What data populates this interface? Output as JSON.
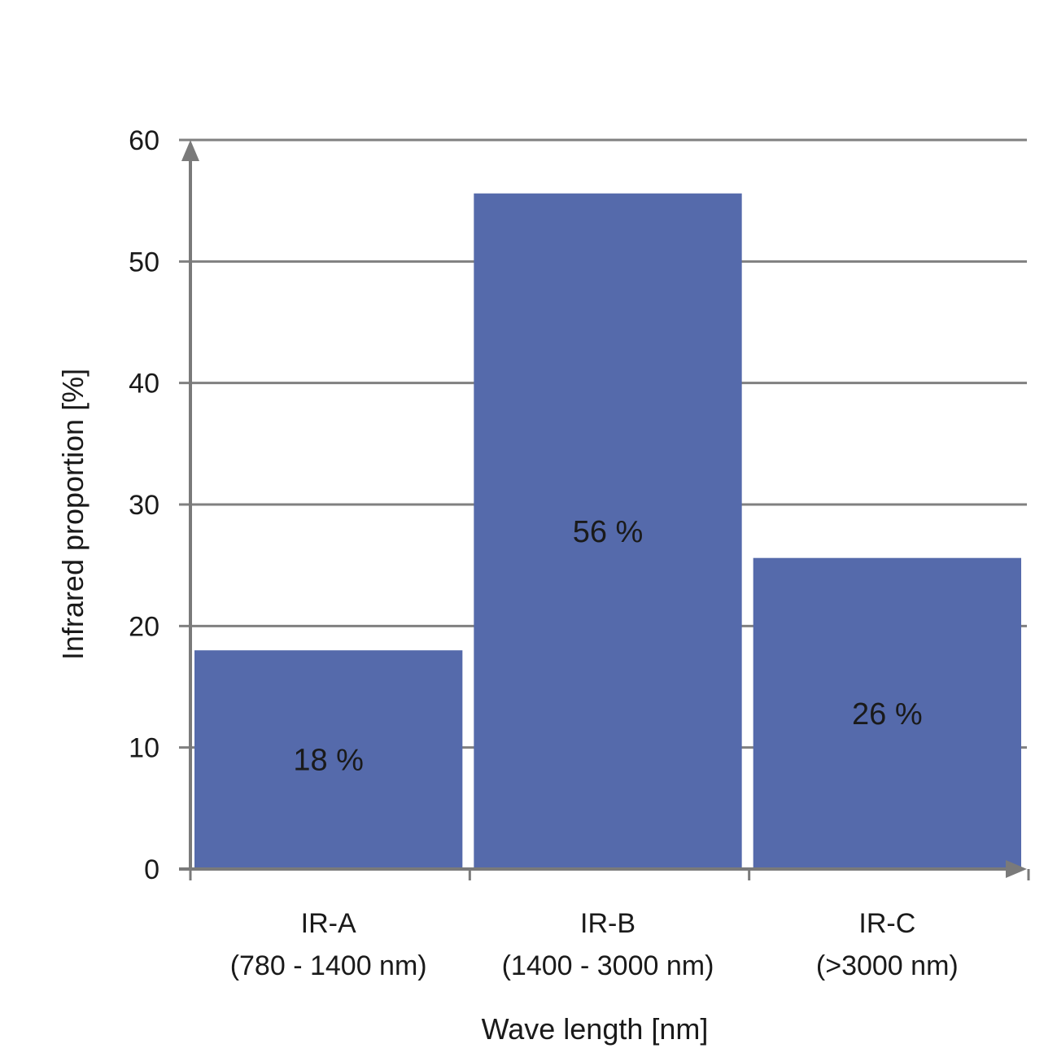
{
  "colors": {
    "bar": "#556AAB",
    "grid": "#808080",
    "axis": "#7a7a7a",
    "text": "#1a1a1a"
  },
  "chart_data": {
    "type": "bar",
    "categories": [
      [
        "IR-A",
        "(780 - 1400 nm)"
      ],
      [
        "IR-B",
        "(1400 - 3000 nm)"
      ],
      [
        "IR-C",
        "(>3000 nm)"
      ]
    ],
    "values": [
      18,
      55.6,
      25.6
    ],
    "data_labels": [
      "18 %",
      "56 %",
      "26 %"
    ],
    "title": "",
    "xlabel": "Wave length [nm]",
    "ylabel": "Infrared proportion [%]",
    "ylim": [
      0,
      60
    ],
    "yticks": [
      0,
      10,
      20,
      30,
      40,
      50,
      60
    ],
    "grid": true,
    "legend": "none"
  }
}
